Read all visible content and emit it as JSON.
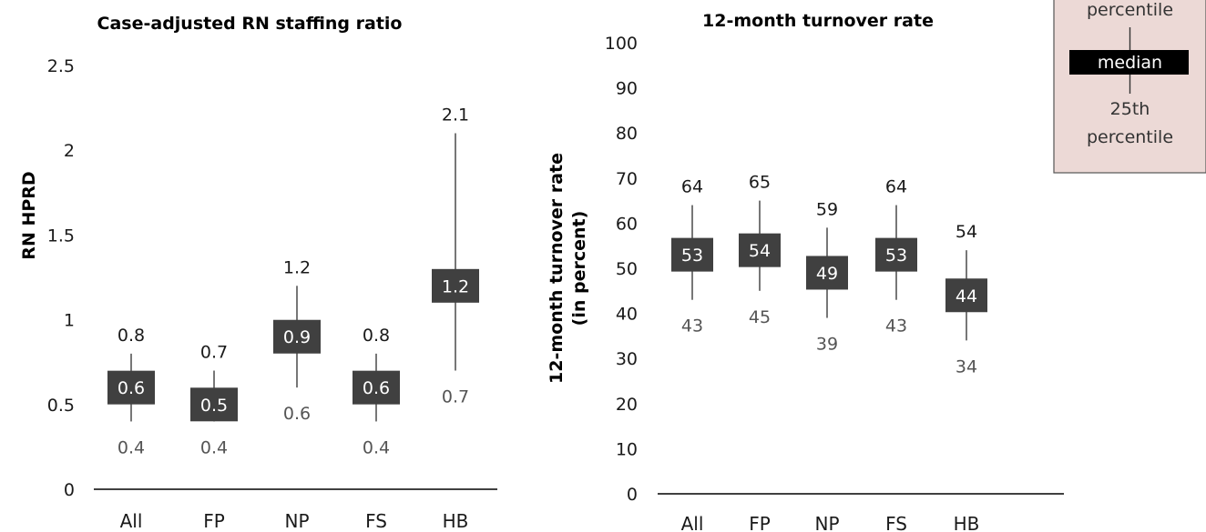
{
  "chart_data": [
    {
      "type": "box",
      "title": "Case-adjusted RN staffing ratio",
      "ylabel": "RN HPRD",
      "xlabel": "",
      "ylim": [
        0,
        2.5
      ],
      "yticks": [
        "0",
        "0.5",
        "1",
        "1.5",
        "2",
        "2.5"
      ],
      "categories": [
        "All",
        "FP",
        "NP",
        "FS",
        "HB"
      ],
      "p25": [
        0.4,
        0.4,
        0.6,
        0.4,
        0.7
      ],
      "median": [
        0.6,
        0.5,
        0.9,
        0.6,
        1.2
      ],
      "p75": [
        0.8,
        0.7,
        1.2,
        0.8,
        2.1
      ],
      "p25_labels": [
        "0.4",
        "0.4",
        "0.6",
        "0.4",
        "0.7"
      ],
      "median_labels": [
        "0.6",
        "0.5",
        "0.9",
        "0.6",
        "1.2"
      ],
      "p75_labels": [
        "0.8",
        "0.7",
        "1.2",
        "0.8",
        "2.1"
      ]
    },
    {
      "type": "box",
      "title": "12-month turnover rate",
      "ylabel": [
        "12-month turnover rate",
        "(in percent)"
      ],
      "xlabel": "",
      "ylim": [
        0,
        100
      ],
      "yticks": [
        "0",
        "10",
        "20",
        "30",
        "40",
        "50",
        "60",
        "70",
        "80",
        "90",
        "100"
      ],
      "categories": [
        "All",
        "FP",
        "NP",
        "FS",
        "HB"
      ],
      "p25": [
        43,
        45,
        39,
        43,
        34
      ],
      "median": [
        53,
        54,
        49,
        53,
        44
      ],
      "p75": [
        64,
        65,
        59,
        64,
        54
      ],
      "p25_labels": [
        "43",
        "45",
        "39",
        "43",
        "34"
      ],
      "median_labels": [
        "53",
        "54",
        "49",
        "53",
        "44"
      ],
      "p75_labels": [
        "64",
        "65",
        "59",
        "64",
        "54"
      ]
    }
  ],
  "legend": {
    "top_label": "percentile",
    "median_label": "median",
    "bottom_label_1": "25th",
    "bottom_label_2": "percentile"
  },
  "colors": {
    "box": "#404040",
    "whisker": "#555555",
    "axis": "#000000",
    "legend_bg": "#ecd9d6",
    "legend_border": "#555555",
    "legend_median_bg": "#000000"
  }
}
